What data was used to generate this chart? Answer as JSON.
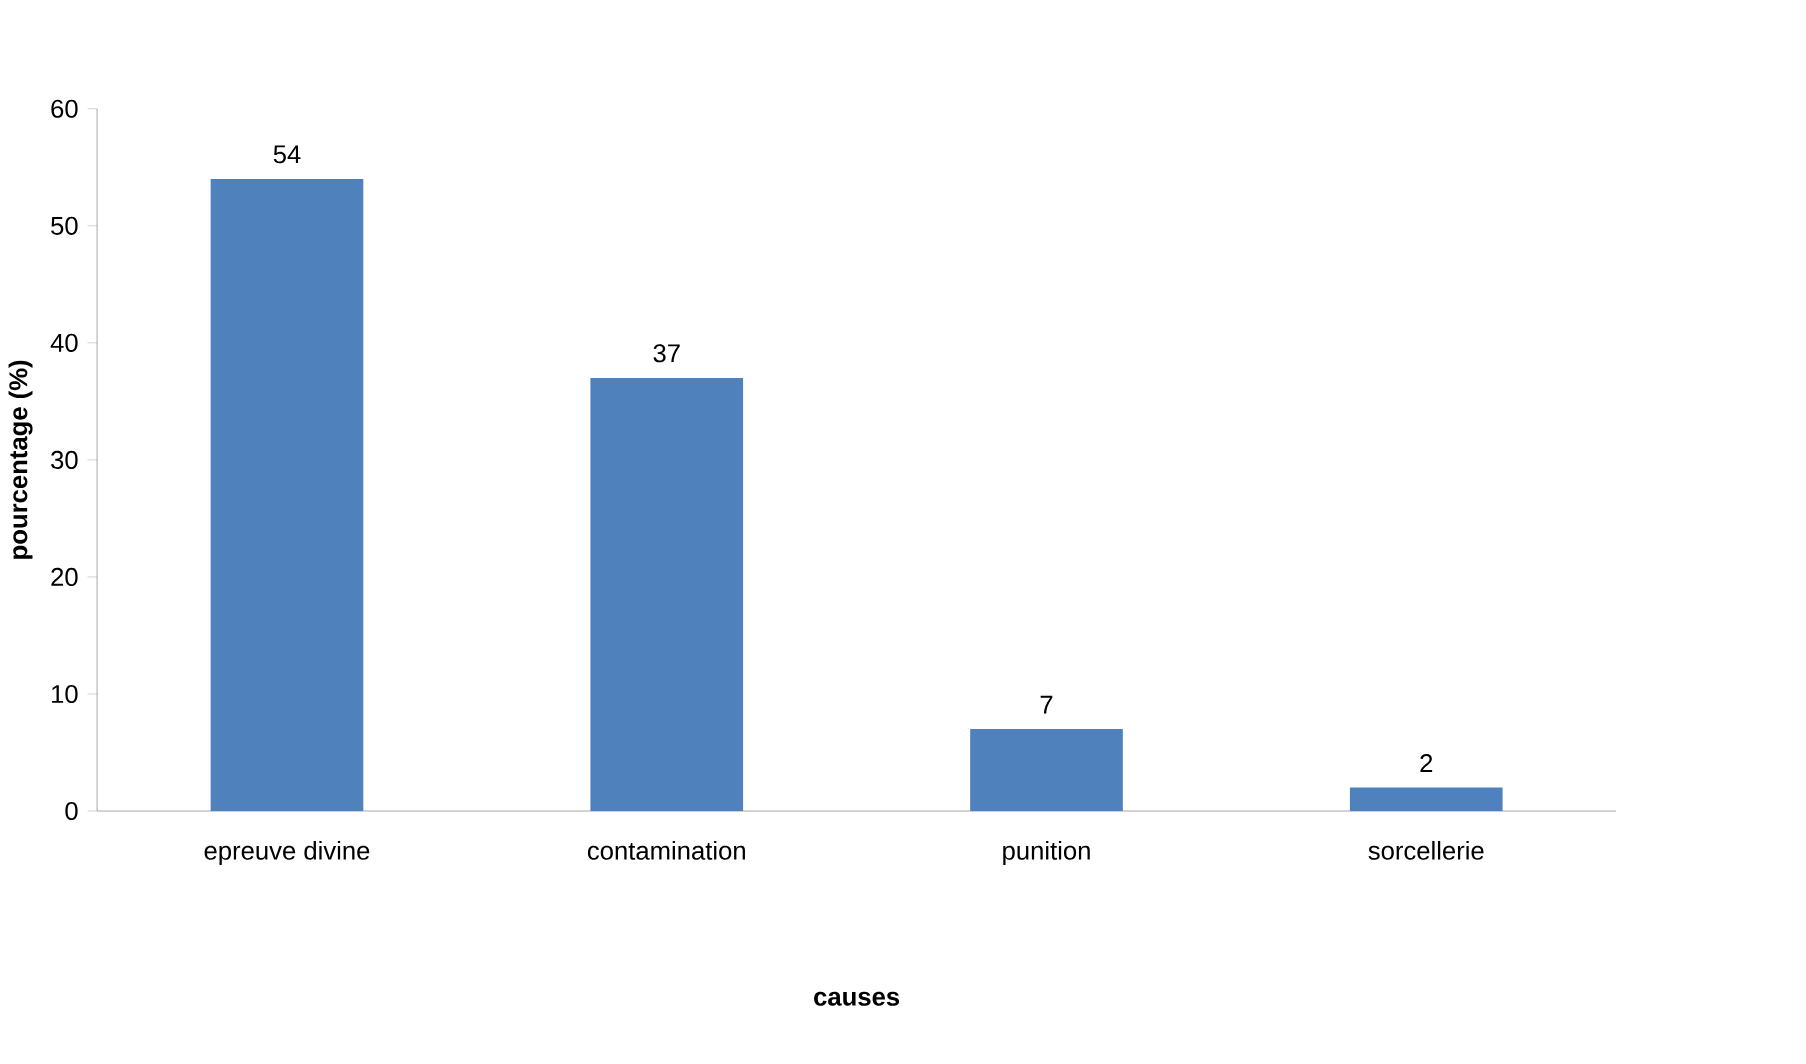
{
  "chart_data": {
    "type": "bar",
    "categories": [
      "epreuve divine",
      "contamination",
      "punition",
      "sorcellerie"
    ],
    "values": [
      54,
      37,
      7,
      2
    ],
    "color": "#4f81bd",
    "xlabel": "causes",
    "ylabel": "pourcentage (%)",
    "ylim": [
      0,
      60
    ],
    "yticks": [
      0,
      10,
      20,
      30,
      40,
      50,
      60
    ],
    "data_labels": true
  }
}
